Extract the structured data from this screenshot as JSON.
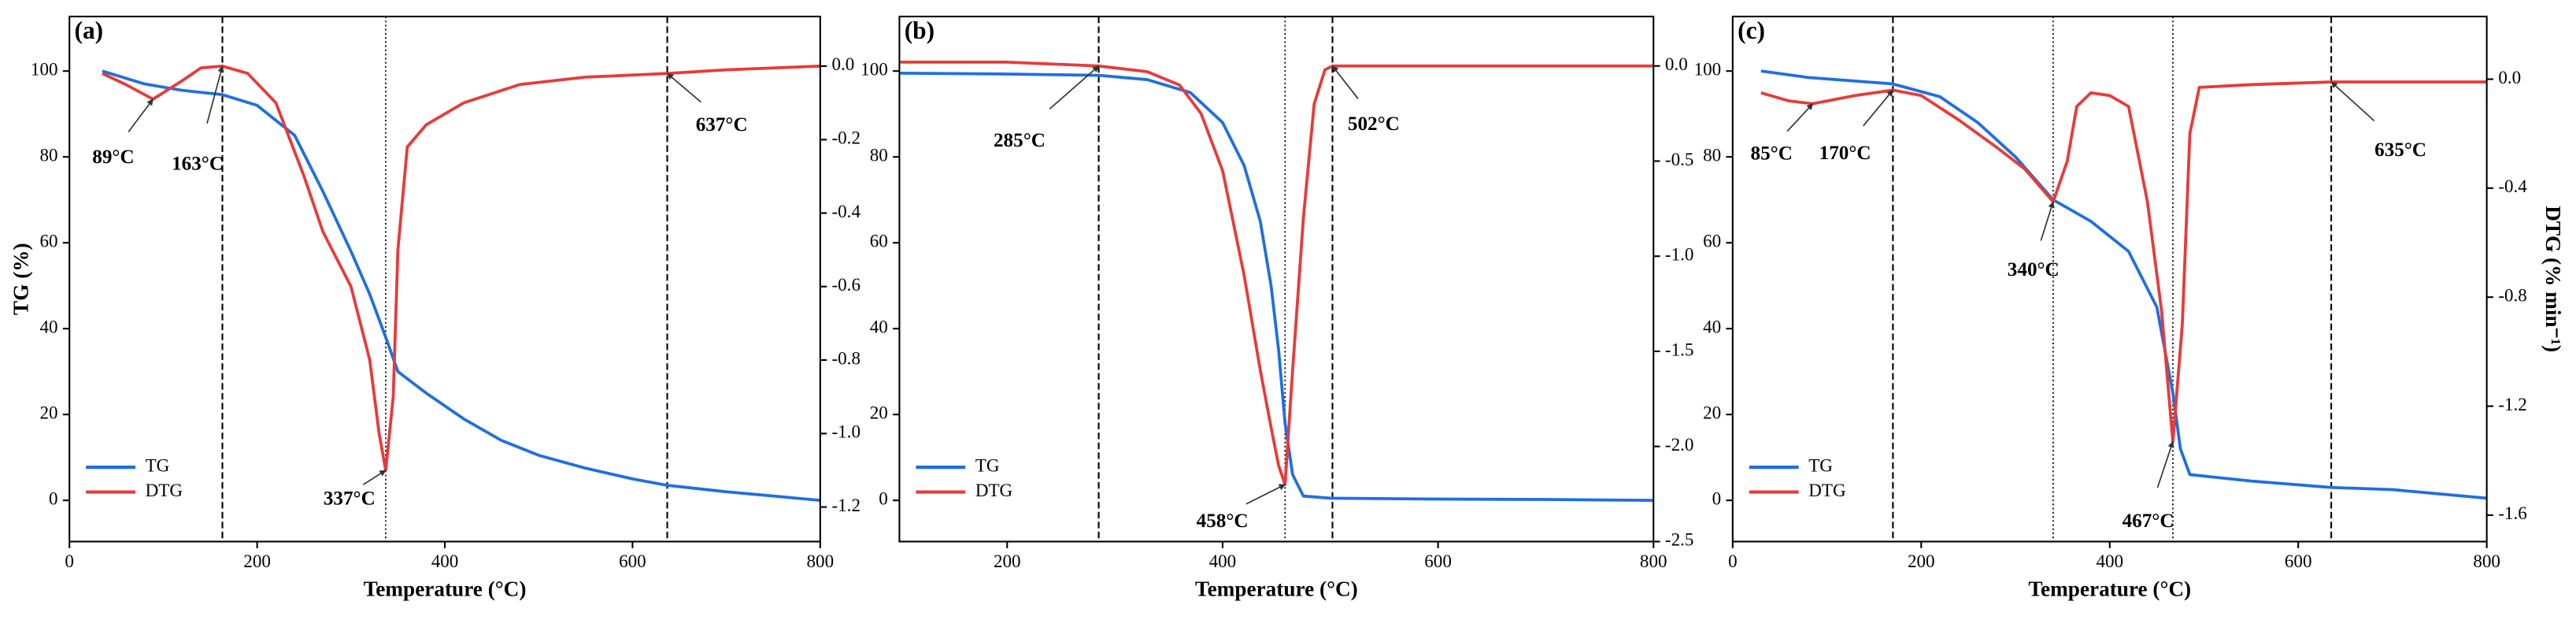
{
  "chart_data": [
    {
      "type": "line",
      "panel": "(a)",
      "xlabel": "Temperature (°C)",
      "ylabel": "TG (%)",
      "xlim": [
        0,
        800
      ],
      "xticks": [
        0,
        200,
        400,
        600,
        800
      ],
      "ylim": [
        -9.6,
        112.7
      ],
      "yticks": [
        0,
        20,
        40,
        60,
        80,
        100
      ],
      "y2lim": [
        -1.294,
        0.135
      ],
      "y2ticks": [
        {
          "value": 0,
          "label": "0.0"
        },
        -0.2,
        -0.4,
        -0.6,
        -0.8,
        {
          "value": -1,
          "label": "-1.0"
        },
        -1.2
      ],
      "legend": "lower left",
      "series": [
        {
          "name": "TG",
          "color": "#1f6fe0",
          "x": [
            35,
            80,
            120,
            163,
            200,
            240,
            270,
            300,
            320,
            337,
            350,
            380,
            420,
            460,
            500,
            550,
            600,
            637,
            700,
            750,
            800
          ],
          "values": [
            100,
            97,
            95.5,
            94.5,
            92,
            85,
            72,
            58,
            48,
            38,
            30,
            25,
            19,
            14,
            10.5,
            7.5,
            5,
            3.5,
            2,
            1,
            0
          ]
        },
        {
          "name": "DTG",
          "color": "#e83a3a",
          "axis": "y2",
          "x": [
            35,
            60,
            89,
            120,
            140,
            163,
            190,
            220,
            250,
            270,
            300,
            320,
            330,
            337,
            345,
            350,
            360,
            380,
            420,
            480,
            550,
            637,
            700,
            800
          ],
          "values": [
            -0.02,
            -0.05,
            -0.09,
            -0.04,
            -0.005,
            0,
            -0.02,
            -0.1,
            -0.3,
            -0.45,
            -0.6,
            -0.8,
            -1.0,
            -1.1,
            -0.9,
            -0.5,
            -0.22,
            -0.16,
            -0.1,
            -0.05,
            -0.03,
            -0.02,
            -0.01,
            0
          ]
        }
      ],
      "vlines": [
        {
          "x": 163,
          "style": "dashed"
        },
        {
          "x": 337,
          "style": "dotted"
        },
        {
          "x": 637,
          "style": "dashed"
        }
      ],
      "annotations": [
        {
          "label": "89°C",
          "x": 89
        },
        {
          "label": "163°C",
          "x": 163
        },
        {
          "label": "337°C",
          "x": 337
        },
        {
          "label": "637°C",
          "x": 637
        }
      ]
    },
    {
      "type": "line",
      "panel": "(b)",
      "xlabel": "Temperature (°C)",
      "xlim": [
        100,
        800
      ],
      "xticks": [
        200,
        400,
        600,
        800
      ],
      "ylim": [
        -9.6,
        112.7
      ],
      "yticks": [
        0,
        20,
        40,
        60,
        80,
        100
      ],
      "y2lim": [
        -2.5,
        0.26
      ],
      "y2ticks": [
        {
          "value": 0,
          "label": "0.0"
        },
        -0.5,
        {
          "value": -1,
          "label": "-1.0"
        },
        -1.5,
        {
          "value": -2,
          "label": "-2.0"
        },
        -2.5
      ],
      "legend": "lower left",
      "series": [
        {
          "name": "TG",
          "color": "#1f6fe0",
          "x": [
            100,
            200,
            285,
            330,
            370,
            400,
            420,
            435,
            445,
            452,
            458,
            465,
            475,
            500,
            600,
            700,
            800
          ],
          "values": [
            99.5,
            99.3,
            99,
            98,
            95,
            88,
            78,
            65,
            50,
            35,
            18,
            6,
            1,
            0.5,
            0.3,
            0.2,
            0
          ]
        },
        {
          "name": "DTG",
          "color": "#e83a3a",
          "axis": "y2",
          "x": [
            100,
            200,
            285,
            330,
            360,
            380,
            400,
            420,
            435,
            445,
            452,
            458,
            465,
            475,
            485,
            495,
            502,
            600,
            800
          ],
          "values": [
            0.02,
            0.02,
            0,
            -0.03,
            -0.1,
            -0.25,
            -0.55,
            -1.1,
            -1.6,
            -1.9,
            -2.1,
            -2.2,
            -1.6,
            -0.8,
            -0.2,
            -0.02,
            0,
            0,
            0
          ]
        }
      ],
      "vlines": [
        {
          "x": 285,
          "style": "dashed"
        },
        {
          "x": 458,
          "style": "dotted"
        },
        {
          "x": 502,
          "style": "dashed"
        }
      ],
      "annotations": [
        {
          "label": "285°C",
          "x": 285
        },
        {
          "label": "458°C",
          "x": 458
        },
        {
          "label": "502°C",
          "x": 502
        }
      ]
    },
    {
      "type": "line",
      "panel": "(c)",
      "xlabel": "Temperature (°C)",
      "y2label": "DTG (% min⁻¹)",
      "xlim": [
        0,
        800
      ],
      "xticks": [
        0,
        200,
        400,
        600,
        800
      ],
      "ylim": [
        -9.6,
        112.7
      ],
      "yticks": [
        0,
        20,
        40,
        60,
        80,
        100
      ],
      "y2lim": [
        -1.697,
        0.23
      ],
      "y2ticks": [
        {
          "value": 0,
          "label": "0.0"
        },
        -0.4,
        -0.8,
        -1.2,
        -1.6
      ],
      "legend": "lower left",
      "series": [
        {
          "name": "TG",
          "color": "#1f6fe0",
          "x": [
            30,
            80,
            170,
            220,
            260,
            300,
            340,
            380,
            420,
            450,
            467,
            475,
            485,
            550,
            635,
            700,
            800
          ],
          "values": [
            100,
            98.5,
            97,
            94,
            88,
            80,
            70,
            65,
            58,
            45,
            25,
            12,
            6,
            4.5,
            3,
            2.5,
            0.5
          ]
        },
        {
          "name": "DTG",
          "color": "#e83a3a",
          "axis": "y2",
          "x": [
            30,
            60,
            85,
            130,
            170,
            200,
            240,
            280,
            310,
            340,
            355,
            365,
            380,
            400,
            420,
            440,
            455,
            467,
            477,
            485,
            495,
            550,
            635,
            800
          ],
          "values": [
            -0.05,
            -0.08,
            -0.09,
            -0.06,
            -0.04,
            -0.06,
            -0.15,
            -0.25,
            -0.33,
            -0.45,
            -0.3,
            -0.1,
            -0.05,
            -0.06,
            -0.1,
            -0.45,
            -0.85,
            -1.33,
            -0.9,
            -0.2,
            -0.03,
            -0.02,
            -0.01,
            -0.01
          ]
        }
      ],
      "vlines": [
        {
          "x": 170,
          "style": "dashed"
        },
        {
          "x": 340,
          "style": "dotted"
        },
        {
          "x": 467,
          "style": "dotted"
        },
        {
          "x": 635,
          "style": "dashed"
        }
      ],
      "annotations": [
        {
          "label": "85°C",
          "x": 85
        },
        {
          "label": "170°C",
          "x": 170
        },
        {
          "label": "340°C",
          "x": 340
        },
        {
          "label": "467°C",
          "x": 467
        },
        {
          "label": "635°C",
          "x": 635
        }
      ]
    }
  ]
}
